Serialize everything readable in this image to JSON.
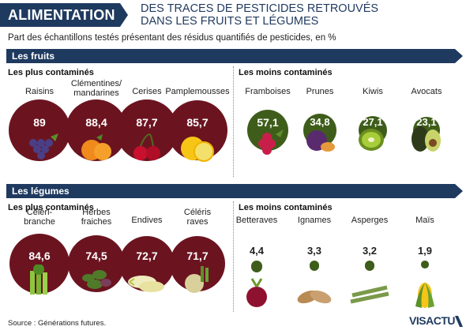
{
  "header": {
    "tag": "ALIMENTATION",
    "title_line1": "DES TRACES DE PESTICIDES RETROUVÉS",
    "title_line2": "DANS LES FRUITS ET LÉGUMES",
    "subtitle": "Part des échantillons testés présentant des résidus quantifiés de pesticides, en %"
  },
  "sections": {
    "fruits": "Les fruits",
    "legumes": "Les légumes",
    "most": "Les plus contaminés",
    "least": "Les moins contaminés"
  },
  "colors": {
    "navy": "#1f3a5f",
    "most": "#6b1420",
    "least": "#3e5d1a"
  },
  "chart_data": [
    {
      "type": "bubble",
      "title": "Les fruits",
      "unit": "%",
      "series": [
        {
          "name": "Les plus contaminés",
          "categories": [
            "Raisins",
            "Clémentines/ mandarines",
            "Cerises",
            "Pamplemousses"
          ],
          "values": [
            89,
            88.4,
            87.7,
            85.7
          ],
          "labels": [
            "89",
            "88,4",
            "87,7",
            "85,7"
          ]
        },
        {
          "name": "Les moins contaminés",
          "categories": [
            "Framboises",
            "Prunes",
            "Kiwis",
            "Avocats"
          ],
          "values": [
            57.1,
            34.8,
            27.1,
            23.1
          ],
          "labels": [
            "57,1",
            "34,8",
            "27,1",
            "23,1"
          ]
        }
      ]
    },
    {
      "type": "bubble",
      "title": "Les légumes",
      "unit": "%",
      "series": [
        {
          "name": "Les plus contaminés",
          "categories": [
            "Céléri- branche",
            "Herbes fraiches",
            "Endives",
            "Céléris raves"
          ],
          "values": [
            84.6,
            74.5,
            72.7,
            71.7
          ],
          "labels": [
            "84,6",
            "74,5",
            "72,7",
            "71,7"
          ]
        },
        {
          "name": "Les moins contaminés",
          "categories": [
            "Betteraves",
            "Ignames",
            "Asperges",
            "Maïs"
          ],
          "values": [
            4.4,
            3.3,
            3.2,
            1.9
          ],
          "labels": [
            "4,4",
            "3,3",
            "3,2",
            "1,9"
          ]
        }
      ]
    }
  ],
  "footer": {
    "source": "Source : Générations futures.",
    "logo": "VISACTU"
  }
}
